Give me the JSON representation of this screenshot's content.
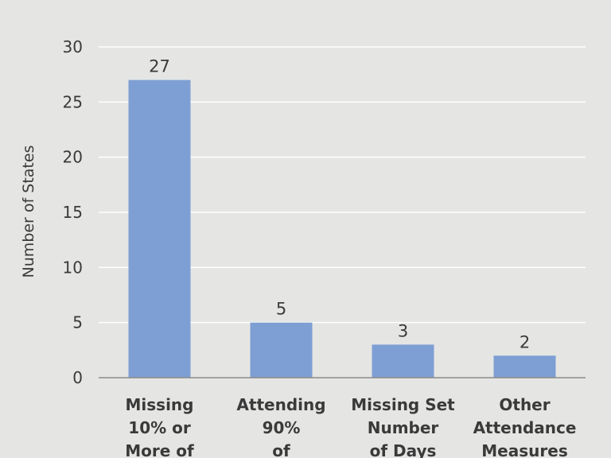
{
  "chart_data": {
    "type": "bar",
    "categories": [
      [
        "Missing",
        "10% or",
        "More of"
      ],
      [
        "Attending",
        "90%",
        "of"
      ],
      [
        "Missing Set",
        "Number",
        "of Days"
      ],
      [
        "Other",
        "Attendance",
        "Measures"
      ]
    ],
    "values": [
      27,
      5,
      3,
      2
    ],
    "data_labels": [
      "27",
      "5",
      "3",
      "2"
    ],
    "ylabel": "Number of States",
    "xlabel": "",
    "title": "",
    "ylim": [
      0,
      30
    ],
    "yticks": [
      0,
      5,
      10,
      15,
      20,
      25,
      30
    ],
    "grid": true,
    "bar_color": "#7e9fd4",
    "grid_color": "#ffffff",
    "text_color": "#3a3a3a",
    "background": "#e5e6e3"
  }
}
